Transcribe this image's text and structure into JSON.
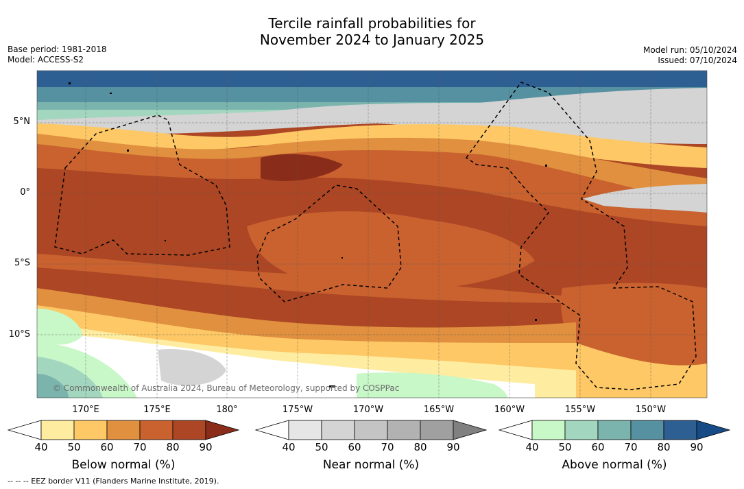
{
  "header": {
    "title_line1": "Tercile rainfall probabilities for",
    "title_line2": "November 2024 to January 2025",
    "base_period": "Base period: 1981-2018",
    "model": "Model: ACCESS-S2",
    "model_run": "Model run: 05/10/2024",
    "issued": "Issued: 07/10/2024"
  },
  "map": {
    "credit": "© Commonwealth of Australia 2024, Bureau of Meteorology, supported by COSPPac",
    "lat_labels": [
      "5°N",
      "0°",
      "5°S",
      "10°S"
    ],
    "lon_labels": [
      "170°E",
      "175°E",
      "180°",
      "175°W",
      "170°W",
      "165°W",
      "160°W",
      "155°W",
      "150°W"
    ]
  },
  "colorbars": [
    {
      "title": "Below normal (%)",
      "ticks": [
        "40",
        "50",
        "60",
        "70",
        "80",
        "90"
      ],
      "colors": [
        "#ffffff",
        "#feeca0",
        "#fdc865",
        "#e0903f",
        "#c9622f",
        "#ac4624",
        "#8a2c1a"
      ]
    },
    {
      "title": "Near normal (%)",
      "ticks": [
        "40",
        "50",
        "60",
        "70",
        "80",
        "90"
      ],
      "colors": [
        "#ffffff",
        "#e6e6e6",
        "#d4d4d4",
        "#c4c4c4",
        "#b2b2b2",
        "#a0a0a0",
        "#808080"
      ]
    },
    {
      "title": "Above normal (%)",
      "ticks": [
        "40",
        "50",
        "60",
        "70",
        "80",
        "90"
      ],
      "colors": [
        "#ffffff",
        "#c8f7c8",
        "#a2d6be",
        "#7ab4ad",
        "#5591a0",
        "#2e5f93",
        "#174b86"
      ]
    }
  ],
  "footer": "--  --  -- EEZ border V11 (Flanders Marine Institute, 2019)."
}
